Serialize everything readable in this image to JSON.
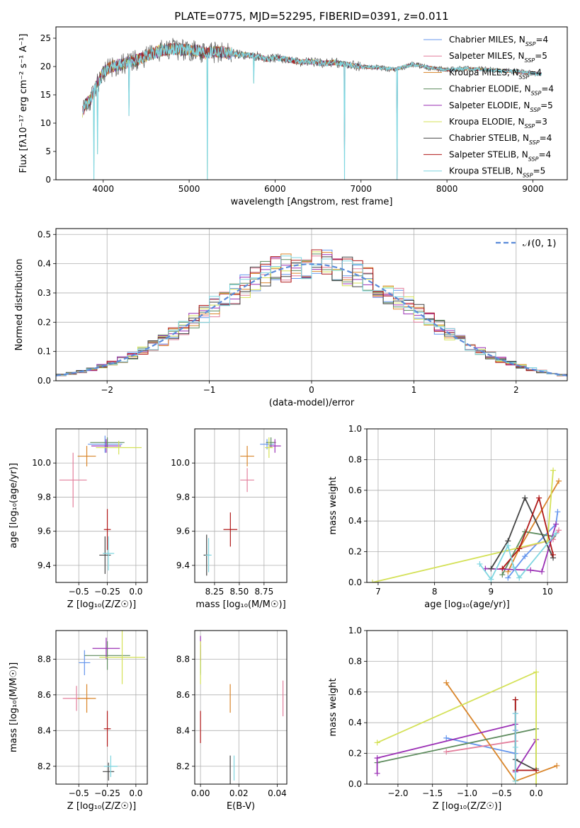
{
  "figure": {
    "title": "PLATE=0775, MJD=52295, FIBERID=0391, z=0.011"
  },
  "chart_data": [
    {
      "id": "spectrum",
      "type": "line",
      "title": "PLATE=0775, MJD=52295, FIBERID=0391, z=0.011",
      "xlabel": "wavelength [Angstrom, rest frame]",
      "ylabel": "Flux [f_λ10^-17 erg cm^-2 s^-1 A^-1]",
      "xlim": [
        3450,
        9400
      ],
      "ylim": [
        0,
        27
      ],
      "xticks": [
        4000,
        5000,
        6000,
        7000,
        8000,
        9000
      ],
      "yticks": [
        0,
        5,
        10,
        15,
        20,
        25
      ],
      "legend_position": "top-right",
      "continuum": [
        [
          3760,
          12
        ],
        [
          3800,
          13.5
        ],
        [
          3850,
          14
        ],
        [
          3900,
          16
        ],
        [
          3950,
          17.5
        ],
        [
          4000,
          19
        ],
        [
          4100,
          20
        ],
        [
          4200,
          20.3
        ],
        [
          4300,
          20.8
        ],
        [
          4400,
          21.2
        ],
        [
          4500,
          21.8
        ],
        [
          4600,
          22.5
        ],
        [
          4700,
          22.9
        ],
        [
          4800,
          23.1
        ],
        [
          4900,
          23
        ],
        [
          5000,
          22.9
        ],
        [
          5100,
          22.8
        ],
        [
          5200,
          22.3
        ],
        [
          5300,
          22.6
        ],
        [
          5400,
          22.5
        ],
        [
          5500,
          22.3
        ],
        [
          5600,
          22.1
        ],
        [
          5700,
          22
        ],
        [
          5800,
          21.8
        ],
        [
          5900,
          21.3
        ],
        [
          6000,
          21.5
        ],
        [
          6100,
          21.4
        ],
        [
          6200,
          21
        ],
        [
          6300,
          20.8
        ],
        [
          6400,
          20.9
        ],
        [
          6500,
          20.6
        ],
        [
          6600,
          20.6
        ],
        [
          6700,
          20.7
        ],
        [
          6800,
          20.4
        ],
        [
          6900,
          20.2
        ],
        [
          7000,
          20
        ],
        [
          7200,
          19.8
        ],
        [
          7400,
          19.5
        ],
        [
          7600,
          20.4
        ],
        [
          7800,
          19.8
        ],
        [
          8000,
          19.4
        ],
        [
          8200,
          19.6
        ],
        [
          8400,
          19.5
        ],
        [
          8600,
          19.3
        ],
        [
          8800,
          19.1
        ],
        [
          9000,
          18.8
        ],
        [
          9100,
          18.7
        ]
      ],
      "drops": [
        [
          3893,
          0
        ],
        [
          3935,
          4.5
        ],
        [
          4300,
          11.3
        ],
        [
          5210,
          0
        ],
        [
          5750,
          17
        ],
        [
          6808,
          0
        ],
        [
          7420,
          0
        ]
      ],
      "series": [
        {
          "label": "Chabrier MILES, N",
          "sub": "SSP",
          "tail": "=4",
          "color": "#6495ED"
        },
        {
          "label": "Salpeter MILES, N",
          "sub": "SSP",
          "tail": "=5",
          "color": "#E37F9C"
        },
        {
          "label": "Kroupa MILES, N",
          "sub": "SSP",
          "tail": "=4",
          "color": "#D9852A"
        },
        {
          "label": "Chabrier ELODIE, N",
          "sub": "SSP",
          "tail": "=4",
          "color": "#5E8C5E"
        },
        {
          "label": "Salpeter ELODIE, N",
          "sub": "SSP",
          "tail": "=5",
          "color": "#9B30B5"
        },
        {
          "label": "Kroupa ELODIE, N",
          "sub": "SSP",
          "tail": "=3",
          "color": "#D4E157"
        },
        {
          "label": "Chabrier STELIB, N",
          "sub": "SSP",
          "tail": "=4",
          "color": "#444444"
        },
        {
          "label": "Salpeter STELIB, N",
          "sub": "SSP",
          "tail": "=4",
          "color": "#B01818"
        },
        {
          "label": "Kroupa STELIB, N",
          "sub": "SSP",
          "tail": "=5",
          "color": "#7FD6E0"
        }
      ]
    },
    {
      "id": "residuals",
      "type": "histogram",
      "xlabel": "(data-model)/error",
      "ylabel": "Normed distribution",
      "xlim": [
        -2.5,
        2.5
      ],
      "ylim": [
        0,
        0.52
      ],
      "xticks": [
        -2,
        -1,
        0,
        1,
        2
      ],
      "yticks": [
        0.0,
        0.1,
        0.2,
        0.3,
        0.4,
        0.5
      ],
      "grid": true,
      "legend_position": "top-right",
      "reference": {
        "label": "𝒩(0, 1)",
        "mu": 0,
        "sigma": 1,
        "color": "#5B8BD9"
      },
      "bins": {
        "start": -2.5,
        "width": 0.1,
        "count": 50
      }
    },
    {
      "id": "age_vs_Z",
      "type": "scatter",
      "xlabel": "Z [log₁₀(Z/Z☉)]",
      "ylabel": "age  [log₁₀(age/yr)]",
      "xlim": [
        -0.7,
        0.1
      ],
      "ylim": [
        9.3,
        10.2
      ],
      "xticks": [
        -0.5,
        -0.25,
        0.0
      ],
      "yticks": [
        9.4,
        9.6,
        9.8,
        10.0
      ],
      "grid": true,
      "points": [
        {
          "x": -0.27,
          "y": 10.11,
          "xerr": 0.15,
          "yerr": 0.05,
          "color": "#6495ED"
        },
        {
          "x": -0.55,
          "y": 9.9,
          "xerr": 0.12,
          "yerr": 0.16,
          "color": "#E37F9C"
        },
        {
          "x": -0.43,
          "y": 10.04,
          "xerr": 0.08,
          "yerr": 0.06,
          "color": "#D9852A"
        },
        {
          "x": -0.25,
          "y": 10.12,
          "xerr": 0.15,
          "yerr": 0.03,
          "color": "#5E8C5E"
        },
        {
          "x": -0.26,
          "y": 10.1,
          "xerr": 0.13,
          "yerr": 0.04,
          "color": "#9B30B5"
        },
        {
          "x": -0.15,
          "y": 10.09,
          "xerr": 0.2,
          "yerr": 0.04,
          "color": "#D4E157"
        },
        {
          "x": -0.27,
          "y": 9.46,
          "xerr": 0.05,
          "yerr": 0.11,
          "color": "#444444"
        },
        {
          "x": -0.25,
          "y": 9.61,
          "xerr": 0.03,
          "yerr": 0.12,
          "color": "#B01818"
        },
        {
          "x": -0.24,
          "y": 9.47,
          "xerr": 0.05,
          "yerr": 0.1,
          "color": "#7FD6E0"
        }
      ]
    },
    {
      "id": "age_vs_mass",
      "type": "scatter",
      "xlabel": "mass [log₁₀(M/M☉)]",
      "ylabel": "",
      "xlim": [
        8.05,
        8.98
      ],
      "ylim": [
        9.3,
        10.2
      ],
      "xticks": [
        8.25,
        8.5,
        8.75
      ],
      "yticks": [
        9.4,
        9.6,
        9.8,
        10.0
      ],
      "grid": true,
      "points": [
        {
          "x": 8.78,
          "y": 10.11,
          "xerr": 0.07,
          "yerr": 0.03,
          "color": "#6495ED"
        },
        {
          "x": 8.58,
          "y": 9.9,
          "xerr": 0.07,
          "yerr": 0.07,
          "color": "#E37F9C"
        },
        {
          "x": 8.58,
          "y": 10.04,
          "xerr": 0.07,
          "yerr": 0.06,
          "color": "#D9852A"
        },
        {
          "x": 8.82,
          "y": 10.12,
          "xerr": 0.05,
          "yerr": 0.03,
          "color": "#5E8C5E"
        },
        {
          "x": 8.86,
          "y": 10.1,
          "xerr": 0.06,
          "yerr": 0.04,
          "color": "#9B30B5"
        },
        {
          "x": 8.8,
          "y": 10.09,
          "xerr": 0.04,
          "yerr": 0.06,
          "color": "#D4E157"
        },
        {
          "x": 8.17,
          "y": 9.46,
          "xerr": 0.03,
          "yerr": 0.12,
          "color": "#444444"
        },
        {
          "x": 8.41,
          "y": 9.61,
          "xerr": 0.07,
          "yerr": 0.1,
          "color": "#B01818"
        },
        {
          "x": 8.19,
          "y": 9.46,
          "xerr": 0.03,
          "yerr": 0.1,
          "color": "#7FD6E0"
        }
      ]
    },
    {
      "id": "mass_weight_vs_age",
      "type": "line",
      "xlabel": "age  [log₁₀(age/yr)]",
      "ylabel": "mass weight",
      "xlim": [
        6.8,
        10.35
      ],
      "ylim": [
        0,
        1.0
      ],
      "xticks": [
        7,
        8,
        9,
        10
      ],
      "yticks": [
        0.0,
        0.2,
        0.4,
        0.6,
        0.8,
        1.0
      ],
      "grid": true,
      "series": [
        {
          "color": "#6495ED",
          "x": [
            9.3,
            9.6,
            10.15,
            10.18
          ],
          "y": [
            0.03,
            0.17,
            0.38,
            0.46
          ]
        },
        {
          "color": "#E37F9C",
          "x": [
            9.5,
            10.1,
            10.2
          ],
          "y": [
            0.22,
            0.28,
            0.34
          ]
        },
        {
          "color": "#D9852A",
          "x": [
            9.3,
            9.5,
            10.2
          ],
          "y": [
            0.07,
            0.22,
            0.66
          ]
        },
        {
          "color": "#5E8C5E",
          "x": [
            9.2,
            9.6,
            10.1
          ],
          "y": [
            0.05,
            0.33,
            0.3
          ]
        },
        {
          "color": "#9B30B5",
          "x": [
            8.9,
            9.7,
            9.9,
            10.15
          ],
          "y": [
            0.09,
            0.08,
            0.07,
            0.38
          ]
        },
        {
          "color": "#D4E157",
          "x": [
            6.9,
            10.0,
            10.1
          ],
          "y": [
            0.0,
            0.27,
            0.73
          ]
        },
        {
          "color": "#444444",
          "x": [
            9.0,
            9.3,
            9.6,
            10.1
          ],
          "y": [
            0.09,
            0.27,
            0.55,
            0.16
          ]
        },
        {
          "color": "#B01818",
          "x": [
            9.2,
            9.5,
            9.85,
            10.1
          ],
          "y": [
            0.09,
            0.22,
            0.55,
            0.18
          ]
        },
        {
          "color": "#7FD6E0",
          "x": [
            8.8,
            9.0,
            9.3,
            9.4,
            9.5,
            10.15
          ],
          "y": [
            0.12,
            0.02,
            0.24,
            0.1,
            0.03,
            0.32
          ]
        }
      ]
    },
    {
      "id": "mass_vs_Z",
      "type": "scatter",
      "xlabel": "Z [log₁₀(Z/Z☉)]",
      "ylabel": "mass [log₁₀(M/M☉)]",
      "xlim": [
        -0.7,
        0.1
      ],
      "ylim": [
        8.1,
        8.96
      ],
      "xticks": [
        -0.5,
        -0.25,
        0.0
      ],
      "yticks": [
        8.2,
        8.4,
        8.6,
        8.8
      ],
      "grid": true,
      "points": [
        {
          "x": -0.45,
          "y": 8.78,
          "xerr": 0.05,
          "yerr": 0.07,
          "color": "#6495ED"
        },
        {
          "x": -0.52,
          "y": 8.58,
          "xerr": 0.12,
          "yerr": 0.07,
          "color": "#E37F9C"
        },
        {
          "x": -0.43,
          "y": 8.58,
          "xerr": 0.08,
          "yerr": 0.08,
          "color": "#D9852A"
        },
        {
          "x": -0.25,
          "y": 8.82,
          "xerr": 0.2,
          "yerr": 0.08,
          "color": "#5E8C5E"
        },
        {
          "x": -0.26,
          "y": 8.86,
          "xerr": 0.12,
          "yerr": 0.06,
          "color": "#9B30B5"
        },
        {
          "x": -0.12,
          "y": 8.81,
          "xerr": 0.2,
          "yerr": 0.15,
          "color": "#D4E157"
        },
        {
          "x": -0.24,
          "y": 8.17,
          "xerr": 0.05,
          "yerr": 0.05,
          "color": "#444444"
        },
        {
          "x": -0.25,
          "y": 8.41,
          "xerr": 0.03,
          "yerr": 0.1,
          "color": "#B01818"
        },
        {
          "x": -0.22,
          "y": 8.2,
          "xerr": 0.06,
          "yerr": 0.06,
          "color": "#7FD6E0"
        }
      ]
    },
    {
      "id": "mass_vs_ebv",
      "type": "scatter",
      "xlabel": "E(B-V)",
      "ylabel": "",
      "xlim": [
        -0.003,
        0.045
      ],
      "ylim": [
        8.1,
        8.96
      ],
      "xticks": [
        0.0,
        0.02,
        0.04
      ],
      "yticks": [
        8.2,
        8.4,
        8.6,
        8.8
      ],
      "grid": true,
      "points": [
        {
          "x": 0.0,
          "y": 8.78,
          "xerr": 0,
          "yerr": 0.07,
          "color": "#6495ED"
        },
        {
          "x": 0.043,
          "y": 8.58,
          "xerr": 0,
          "yerr": 0.1,
          "color": "#E37F9C"
        },
        {
          "x": 0.0155,
          "y": 8.58,
          "xerr": 0,
          "yerr": 0.08,
          "color": "#D9852A"
        },
        {
          "x": 0.0,
          "y": 8.8,
          "xerr": 0,
          "yerr": 0.08,
          "color": "#5E8C5E"
        },
        {
          "x": 0.0,
          "y": 8.86,
          "xerr": 0,
          "yerr": 0.07,
          "color": "#9B30B5"
        },
        {
          "x": 0.0,
          "y": 8.78,
          "xerr": 0,
          "yerr": 0.12,
          "color": "#D4E157"
        },
        {
          "x": 0.0155,
          "y": 8.17,
          "xerr": 0,
          "yerr": 0.09,
          "color": "#444444"
        },
        {
          "x": 0.0,
          "y": 8.42,
          "xerr": 0,
          "yerr": 0.09,
          "color": "#B01818"
        },
        {
          "x": 0.0175,
          "y": 8.19,
          "xerr": 0,
          "yerr": 0.07,
          "color": "#7FD6E0"
        }
      ]
    },
    {
      "id": "mass_weight_vs_Z",
      "type": "line",
      "xlabel": "Z [log₁₀(Z/Z☉)]",
      "ylabel": "mass weight",
      "xlim": [
        -2.45,
        0.45
      ],
      "ylim": [
        0,
        1.0
      ],
      "xticks": [
        -2.0,
        -1.5,
        -1.0,
        -0.5,
        0.0
      ],
      "yticks": [
        0.0,
        0.2,
        0.4,
        0.6,
        0.8,
        1.0
      ],
      "grid": true,
      "series": [
        {
          "color": "#6495ED",
          "x": [
            -1.3,
            -0.3,
            -0.3,
            -0.3
          ],
          "y": [
            0.3,
            0.2,
            0.35,
            0.46
          ]
        },
        {
          "color": "#E37F9C",
          "x": [
            -1.3,
            -0.3
          ],
          "y": [
            0.21,
            0.28
          ]
        },
        {
          "color": "#D9852A",
          "x": [
            -1.3,
            -0.3,
            0.3
          ],
          "y": [
            0.66,
            0.02,
            0.12
          ]
        },
        {
          "color": "#5E8C5E",
          "x": [
            -2.3,
            0.0,
            0.0
          ],
          "y": [
            0.14,
            0.36,
            0.1
          ]
        },
        {
          "color": "#9B30B5",
          "x": [
            -2.3,
            -2.3,
            -0.3,
            -0.3,
            0.0
          ],
          "y": [
            0.07,
            0.17,
            0.39,
            0.08,
            0.29
          ]
        },
        {
          "color": "#D4E157",
          "x": [
            -2.3,
            0.0,
            0.0
          ],
          "y": [
            0.27,
            0.73,
            0.0
          ]
        },
        {
          "color": "#444444",
          "x": [
            -0.3,
            -0.3,
            0.0
          ],
          "y": [
            0.55,
            0.16,
            0.09
          ]
        },
        {
          "color": "#B01818",
          "x": [
            -0.3,
            -0.3,
            0.0
          ],
          "y": [
            0.55,
            0.09,
            0.09
          ]
        },
        {
          "color": "#7FD6E0",
          "x": [
            -0.3,
            -0.3,
            -0.3
          ],
          "y": [
            0.02,
            0.24,
            0.46
          ]
        }
      ]
    }
  ]
}
